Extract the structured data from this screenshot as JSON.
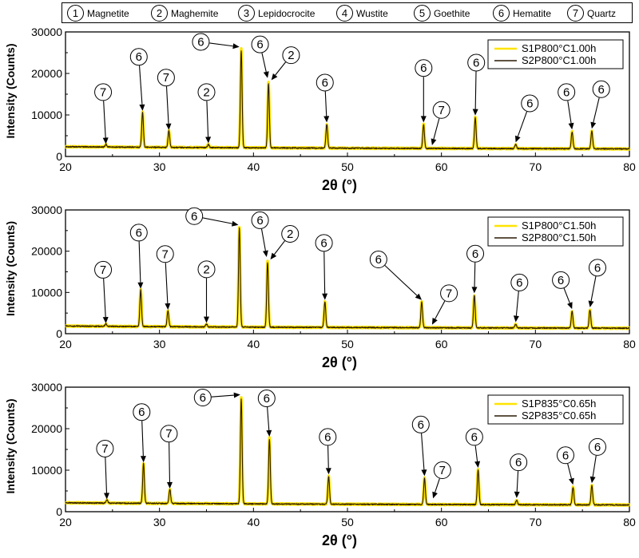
{
  "phase_legend": [
    {
      "num": "1",
      "name": "Magnetite"
    },
    {
      "num": "2",
      "name": "Maghemite"
    },
    {
      "num": "3",
      "name": "Lepidocrocite"
    },
    {
      "num": "4",
      "name": "Wustite"
    },
    {
      "num": "5",
      "name": "Goethite"
    },
    {
      "num": "6",
      "name": "Hematite"
    },
    {
      "num": "7",
      "name": "Quartz"
    }
  ],
  "colors": {
    "series1": "#FFE400",
    "series2": "#2b1a05"
  },
  "chart_data": [
    {
      "type": "line",
      "xlabel": "2θ (°)",
      "ylabel": "Intensity (Counts)",
      "xlim": [
        20,
        80
      ],
      "ylim": [
        0,
        30000
      ],
      "xticks": [
        "20",
        "30",
        "40",
        "50",
        "60",
        "70",
        "80"
      ],
      "yticks": [
        "0",
        "10000",
        "20000",
        "30000"
      ],
      "legend_position": "top-right",
      "series": [
        {
          "name": "S1P800°C1.00h"
        },
        {
          "name": "S2P800°C1.00h"
        }
      ],
      "baseline": 2000,
      "peaks": [
        {
          "x": 24.3,
          "y": 2600
        },
        {
          "x": 28.2,
          "y": 10600
        },
        {
          "x": 31.0,
          "y": 6000
        },
        {
          "x": 35.2,
          "y": 2800
        },
        {
          "x": 38.7,
          "y": 25800
        },
        {
          "x": 41.6,
          "y": 17800
        },
        {
          "x": 47.8,
          "y": 7800
        },
        {
          "x": 58.1,
          "y": 7800
        },
        {
          "x": 63.6,
          "y": 9500
        },
        {
          "x": 67.9,
          "y": 3000
        },
        {
          "x": 73.9,
          "y": 6100
        },
        {
          "x": 76.0,
          "y": 6300
        }
      ],
      "annotations": [
        {
          "label": "7",
          "x": 24.3,
          "y": 2600,
          "lx": 24.0,
          "ly": 15500
        },
        {
          "label": "6",
          "x": 28.2,
          "y": 10600,
          "lx": 27.8,
          "ly": 24000
        },
        {
          "label": "7",
          "x": 31.0,
          "y": 6000,
          "lx": 30.7,
          "ly": 19000
        },
        {
          "label": "2",
          "x": 35.2,
          "y": 2800,
          "lx": 35.0,
          "ly": 15500
        },
        {
          "label": "6",
          "x": 38.5,
          "y": 26000,
          "lx": 34.4,
          "ly": 27600
        },
        {
          "label": "6",
          "x": 41.5,
          "y": 18500,
          "lx": 40.7,
          "ly": 27000
        },
        {
          "label": "2",
          "x": 41.9,
          "y": 18000,
          "lx": 44.0,
          "ly": 24400
        },
        {
          "label": "6",
          "x": 47.8,
          "y": 7800,
          "lx": 47.6,
          "ly": 17800
        },
        {
          "label": "6",
          "x": 58.1,
          "y": 7800,
          "lx": 58.1,
          "ly": 21300
        },
        {
          "label": "7",
          "x": 59.0,
          "y": 2300,
          "lx": 60.0,
          "ly": 11200
        },
        {
          "label": "6",
          "x": 63.6,
          "y": 9500,
          "lx": 63.7,
          "ly": 22600
        },
        {
          "label": "6",
          "x": 67.9,
          "y": 3000,
          "lx": 69.4,
          "ly": 12800
        },
        {
          "label": "6",
          "x": 73.9,
          "y": 6100,
          "lx": 73.3,
          "ly": 15500
        },
        {
          "label": "6",
          "x": 76.0,
          "y": 6300,
          "lx": 77.0,
          "ly": 16200
        }
      ]
    },
    {
      "type": "line",
      "xlabel": "2θ (°)",
      "ylabel": "Intensity (Counts)",
      "xlim": [
        20,
        80
      ],
      "ylim": [
        0,
        30000
      ],
      "xticks": [
        "20",
        "30",
        "40",
        "50",
        "60",
        "70",
        "80"
      ],
      "yticks": [
        "0",
        "10000",
        "20000",
        "30000"
      ],
      "legend_position": "top-right",
      "series": [
        {
          "name": "S1P800°C1.50h"
        },
        {
          "name": "S2P800°C1.50h"
        }
      ],
      "baseline": 1500,
      "peaks": [
        {
          "x": 24.3,
          "y": 2100
        },
        {
          "x": 28.0,
          "y": 10500
        },
        {
          "x": 30.9,
          "y": 5400
        },
        {
          "x": 35.0,
          "y": 2200
        },
        {
          "x": 38.5,
          "y": 25800
        },
        {
          "x": 41.5,
          "y": 17500
        },
        {
          "x": 47.6,
          "y": 7800
        },
        {
          "x": 57.9,
          "y": 7800
        },
        {
          "x": 63.5,
          "y": 9400
        },
        {
          "x": 67.9,
          "y": 2400
        },
        {
          "x": 73.9,
          "y": 5600
        },
        {
          "x": 75.8,
          "y": 6000
        }
      ],
      "annotations": [
        {
          "label": "7",
          "x": 24.3,
          "y": 2100,
          "lx": 24.0,
          "ly": 15500
        },
        {
          "label": "6",
          "x": 28.0,
          "y": 10500,
          "lx": 27.8,
          "ly": 24500
        },
        {
          "label": "7",
          "x": 30.9,
          "y": 5400,
          "lx": 30.6,
          "ly": 19300
        },
        {
          "label": "2",
          "x": 35.0,
          "y": 2200,
          "lx": 35.0,
          "ly": 15600
        },
        {
          "label": "6",
          "x": 38.4,
          "y": 26000,
          "lx": 33.7,
          "ly": 28500
        },
        {
          "label": "6",
          "x": 41.4,
          "y": 18200,
          "lx": 40.7,
          "ly": 27500
        },
        {
          "label": "2",
          "x": 41.8,
          "y": 17600,
          "lx": 43.9,
          "ly": 24200
        },
        {
          "label": "6",
          "x": 47.6,
          "y": 7800,
          "lx": 47.5,
          "ly": 22000
        },
        {
          "label": "6",
          "x": 57.9,
          "y": 7800,
          "lx": 53.3,
          "ly": 18000
        },
        {
          "label": "7",
          "x": 59.0,
          "y": 1800,
          "lx": 60.8,
          "ly": 9800
        },
        {
          "label": "6",
          "x": 63.5,
          "y": 9400,
          "lx": 63.6,
          "ly": 19400
        },
        {
          "label": "6",
          "x": 67.9,
          "y": 2400,
          "lx": 68.3,
          "ly": 12400
        },
        {
          "label": "6",
          "x": 73.9,
          "y": 5600,
          "lx": 72.7,
          "ly": 13000
        },
        {
          "label": "6",
          "x": 75.8,
          "y": 6000,
          "lx": 76.6,
          "ly": 16000
        }
      ]
    },
    {
      "type": "line",
      "xlabel": "2θ (°)",
      "ylabel": "Intensity (Counts)",
      "xlim": [
        20,
        80
      ],
      "ylim": [
        0,
        30000
      ],
      "xticks": [
        "20",
        "30",
        "40",
        "50",
        "60",
        "70",
        "80"
      ],
      "yticks": [
        "0",
        "10000",
        "20000",
        "30000"
      ],
      "legend_position": "top-right",
      "series": [
        {
          "name": "S1P835°C0.65h"
        },
        {
          "name": "S2P835°C0.65h"
        }
      ],
      "baseline": 1800,
      "peaks": [
        {
          "x": 24.4,
          "y": 2600
        },
        {
          "x": 28.3,
          "y": 11500
        },
        {
          "x": 31.1,
          "y": 5200
        },
        {
          "x": 38.7,
          "y": 27500
        },
        {
          "x": 41.7,
          "y": 17700
        },
        {
          "x": 48.0,
          "y": 8600
        },
        {
          "x": 58.2,
          "y": 8200
        },
        {
          "x": 63.9,
          "y": 10200
        },
        {
          "x": 68.0,
          "y": 2900
        },
        {
          "x": 74.0,
          "y": 6100
        },
        {
          "x": 76.0,
          "y": 6500
        }
      ],
      "annotations": [
        {
          "label": "7",
          "x": 24.4,
          "y": 2600,
          "lx": 24.2,
          "ly": 15200
        },
        {
          "label": "6",
          "x": 28.3,
          "y": 11500,
          "lx": 28.1,
          "ly": 24000
        },
        {
          "label": "7",
          "x": 31.1,
          "y": 5200,
          "lx": 31.0,
          "ly": 18800
        },
        {
          "label": "6",
          "x": 38.6,
          "y": 27800,
          "lx": 34.6,
          "ly": 27500
        },
        {
          "label": "6",
          "x": 41.7,
          "y": 17700,
          "lx": 41.4,
          "ly": 27300
        },
        {
          "label": "6",
          "x": 48.0,
          "y": 8600,
          "lx": 47.9,
          "ly": 18000
        },
        {
          "label": "6",
          "x": 58.2,
          "y": 8200,
          "lx": 57.8,
          "ly": 21000
        },
        {
          "label": "7",
          "x": 59.1,
          "y": 2800,
          "lx": 60.1,
          "ly": 10000
        },
        {
          "label": "6",
          "x": 63.9,
          "y": 10200,
          "lx": 63.5,
          "ly": 18000
        },
        {
          "label": "6",
          "x": 68.0,
          "y": 2900,
          "lx": 68.2,
          "ly": 11900
        },
        {
          "label": "6",
          "x": 74.0,
          "y": 6100,
          "lx": 73.2,
          "ly": 13600
        },
        {
          "label": "6",
          "x": 76.0,
          "y": 6500,
          "lx": 76.6,
          "ly": 15600
        }
      ]
    }
  ]
}
